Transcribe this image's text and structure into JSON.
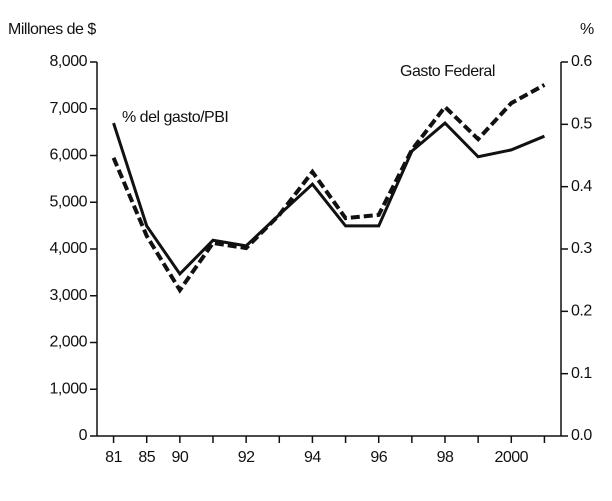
{
  "chart_data": {
    "type": "line",
    "y_label": "Millones de $",
    "y2_label": "%",
    "categories": [
      "81",
      "85",
      "90",
      null,
      "92",
      null,
      "94",
      null,
      "96",
      null,
      "98",
      null,
      "2000",
      null
    ],
    "series": [
      {
        "name": "Gasto Federal",
        "color": "#111111",
        "dash": true,
        "values": [
          5950,
          4280,
          3120,
          4130,
          4020,
          4730,
          5650,
          4660,
          4730,
          6120,
          7040,
          6350,
          7120,
          7510
        ]
      },
      {
        "name": "% del gasto/PBI",
        "color": "#111111",
        "dash": false,
        "axis": "y2",
        "values": [
          0.502,
          0.337,
          0.26,
          0.314,
          0.305,
          0.355,
          0.404,
          0.337,
          0.337,
          0.457,
          0.502,
          0.448,
          0.459,
          0.481
        ]
      }
    ],
    "ylim": [
      0,
      8000
    ],
    "yticks": [
      0,
      {
        "value": 1000,
        "label": "1,000"
      },
      {
        "value": 2000,
        "label": "2,000"
      },
      {
        "value": 3000,
        "label": "3,000"
      },
      {
        "value": 4000,
        "label": "4,000"
      },
      {
        "value": 5000,
        "label": "5,000"
      },
      {
        "value": 6000,
        "label": "6,000"
      },
      {
        "value": 7000,
        "label": "7,000"
      },
      {
        "value": 8000,
        "label": "8,000"
      }
    ],
    "y2lim": [
      0,
      0.6
    ],
    "y2ticks": [
      {
        "value": 0,
        "label": "0.0"
      },
      0.1,
      0.2,
      0.3,
      0.4,
      0.5,
      0.6
    ],
    "grid": false
  }
}
